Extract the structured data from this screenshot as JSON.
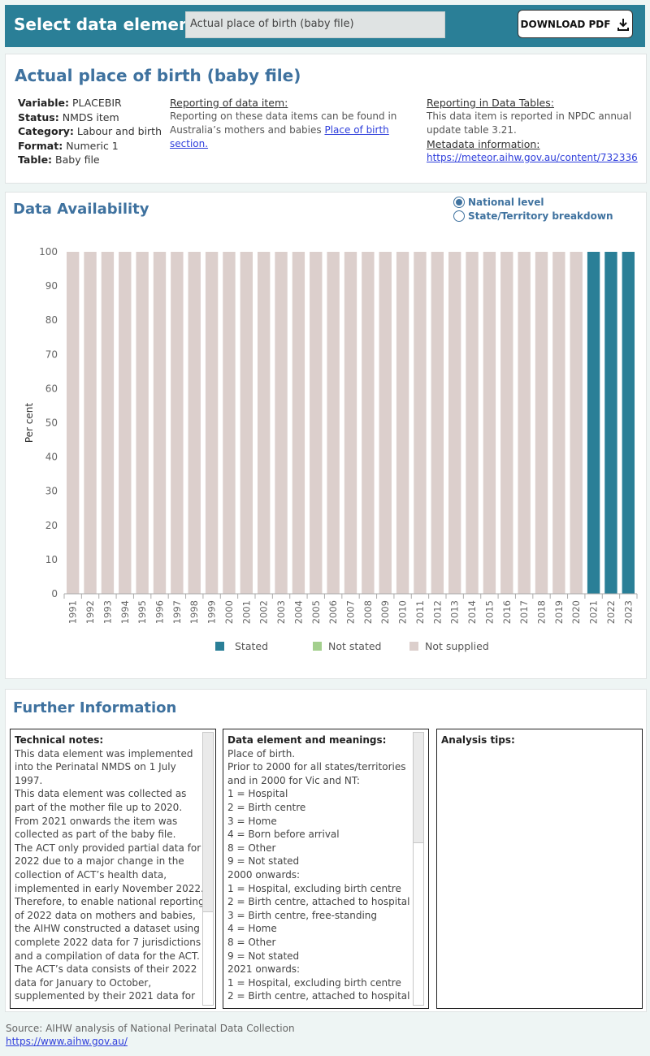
{
  "topbar": {
    "label": "Select data element:",
    "selected": "Actual place of birth (baby file)",
    "download_label": "DOWNLOAD PDF"
  },
  "info": {
    "title": "Actual place of birth (baby file)",
    "variable_key": "Variable:",
    "variable": "PLACEBIR",
    "status_key": "Status:",
    "status": "NMDS item",
    "category_key": "Category:",
    "category": "Labour and birth",
    "format_key": "Format:",
    "format": "Numeric 1",
    "table_key": "Table:",
    "table": "Baby file",
    "reporting_heading": "Reporting of data item:",
    "reporting_text": "Reporting on these data items can be found in Australia’s mothers and babies",
    "reporting_link": "Place of birth section.",
    "tables_heading": "Reporting in Data Tables:",
    "tables_text": "This data item is reported in NPDC annual update table 3.21.",
    "metadata_heading": "Metadata information:",
    "metadata_link": "https://meteor.aihw.gov.au/content/732336"
  },
  "availability": {
    "title": "Data Availability",
    "radio_national": "National level",
    "radio_state": "State/Territory breakdown",
    "selected": "National level"
  },
  "chart_data": {
    "type": "bar",
    "stacked": true,
    "ylabel": "Per cent",
    "ylim": [
      0,
      100
    ],
    "yticks": [
      0,
      10,
      20,
      30,
      40,
      50,
      60,
      70,
      80,
      90,
      100
    ],
    "grid": false,
    "legend_position": "bottom",
    "categories": [
      "1991",
      "1992",
      "1993",
      "1994",
      "1995",
      "1996",
      "1997",
      "1998",
      "1999",
      "2000",
      "2001",
      "2002",
      "2003",
      "2004",
      "2005",
      "2006",
      "2007",
      "2008",
      "2009",
      "2010",
      "2011",
      "2012",
      "2013",
      "2014",
      "2015",
      "2016",
      "2017",
      "2018",
      "2019",
      "2020",
      "2021",
      "2022",
      "2023"
    ],
    "series": [
      {
        "name": "Stated",
        "color": "#2a7f97",
        "values": [
          0,
          0,
          0,
          0,
          0,
          0,
          0,
          0,
          0,
          0,
          0,
          0,
          0,
          0,
          0,
          0,
          0,
          0,
          0,
          0,
          0,
          0,
          0,
          0,
          0,
          0,
          0,
          0,
          0,
          0,
          100,
          100,
          100
        ]
      },
      {
        "name": "Not stated",
        "color": "#a3cf8d",
        "values": [
          0,
          0,
          0,
          0,
          0,
          0,
          0,
          0,
          0,
          0,
          0,
          0,
          0,
          0,
          0,
          0,
          0,
          0,
          0,
          0,
          0,
          0,
          0,
          0,
          0,
          0,
          0,
          0,
          0,
          0,
          0,
          0,
          0
        ]
      },
      {
        "name": "Not supplied",
        "color": "#dccfcc",
        "values": [
          100,
          100,
          100,
          100,
          100,
          100,
          100,
          100,
          100,
          100,
          100,
          100,
          100,
          100,
          100,
          100,
          100,
          100,
          100,
          100,
          100,
          100,
          100,
          100,
          100,
          100,
          100,
          100,
          100,
          100,
          0,
          0,
          0
        ]
      }
    ]
  },
  "further": {
    "title": "Further Information",
    "technical_heading": "Technical notes:",
    "technical_lines": [
      "This data element was implemented",
      "into the Perinatal NMDS on 1 July",
      "1997.",
      "This data element was collected as",
      "part of the mother file up to 2020.",
      "From 2021 onwards the item was",
      "collected as part of the baby file.",
      "The ACT only provided partial data for",
      "2022 due to a major change in the",
      "collection of ACT’s health data,",
      "implemented in early November 2022.",
      "Therefore, to enable national reporting",
      "of 2022 data on mothers and babies,",
      "the AIHW constructed a dataset using",
      "complete 2022 data for 7 jurisdictions",
      "and a compilation of data for the ACT.",
      "The ACT’s data consists of their 2022",
      "data for January to October,",
      "supplemented by their 2021 data for"
    ],
    "meanings_heading": "Data element and meanings:",
    "meanings_lines": [
      "Place of birth.",
      "Prior to 2000 for all states/territories",
      "and in 2000 for Vic and NT:",
      "1 = Hospital",
      "2 = Birth centre",
      "3 = Home",
      "4 = Born before arrival",
      "8 = Other",
      "9 = Not stated",
      "2000 onwards:",
      "1 = Hospital, excluding birth centre",
      "2 = Birth centre, attached to hospital",
      "3 = Birth centre, free-standing",
      "4 = Home",
      "8 = Other",
      "9 = Not stated",
      "2021 onwards:",
      "1 = Hospital, excluding birth centre",
      "2 = Birth centre, attached to hospital"
    ],
    "tips_heading": "Analysis tips:"
  },
  "footer": {
    "source": "Source: AIHW analysis of National Perinatal Data Collection",
    "url": "https://www.aihw.gov.au/"
  }
}
